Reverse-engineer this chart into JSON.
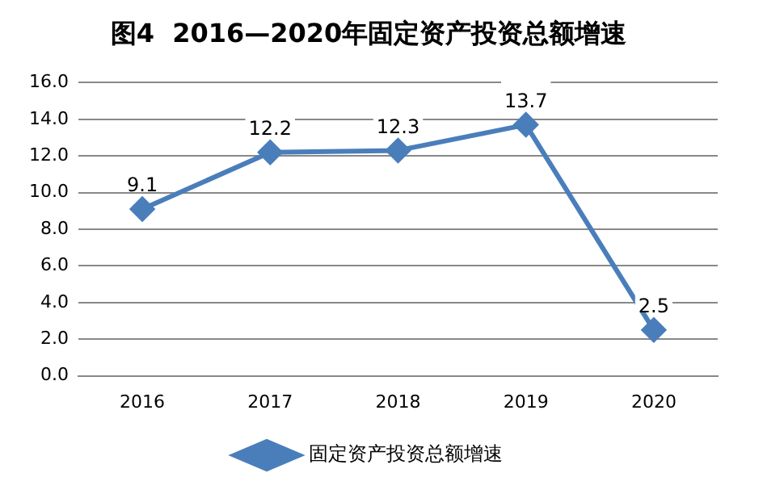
{
  "chart_data": {
    "type": "line",
    "title": "图4  2016—2020年固定资产投资总额增速",
    "categories": [
      "2016",
      "2017",
      "2018",
      "2019",
      "2020"
    ],
    "series": [
      {
        "name": "固定资产投资总额增速",
        "color": "#4a7ebb",
        "values": [
          9.1,
          12.2,
          12.3,
          13.7,
          2.5
        ]
      }
    ],
    "ylim": [
      0,
      16
    ],
    "yticks": [
      {
        "value": 0,
        "label": "0.0"
      },
      {
        "value": 2,
        "label": "2.0"
      },
      {
        "value": 4,
        "label": "4.0"
      },
      {
        "value": 6,
        "label": "6.0"
      },
      {
        "value": 8,
        "label": "8.0"
      },
      {
        "value": 10,
        "label": "10.0"
      },
      {
        "value": 12,
        "label": "12.0"
      },
      {
        "value": 14,
        "label": "14.0"
      },
      {
        "value": 16,
        "label": "16.0"
      }
    ],
    "grid": "y",
    "legend": "bottom",
    "marker": "diamond",
    "line_style": "solid",
    "data_labels": true
  }
}
